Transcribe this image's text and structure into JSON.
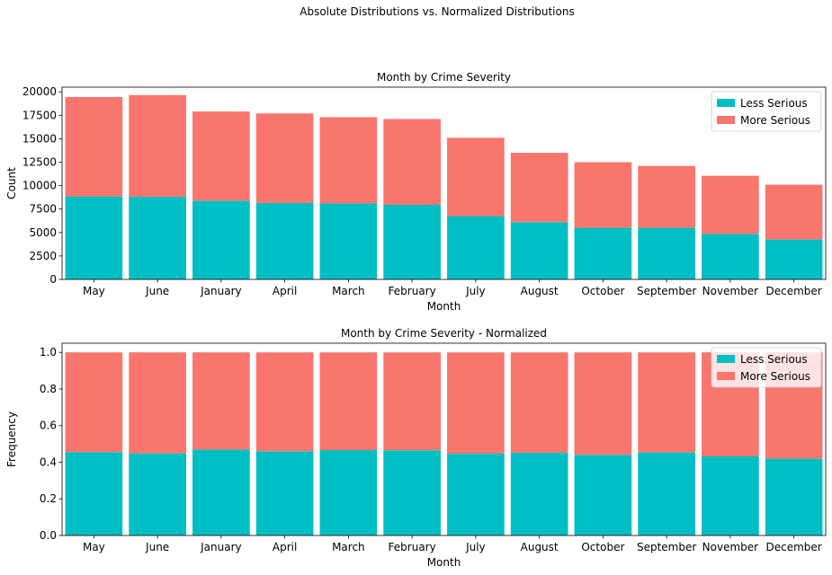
{
  "figure_title": "Absolute Distributions vs. Normalized Distributions",
  "colors": {
    "less_serious": "#00bfc4",
    "more_serious": "#f8766d"
  },
  "chart_data": [
    {
      "type": "bar",
      "stacked": true,
      "title": "Month by Crime Severity",
      "xlabel": "Month",
      "ylabel": "Count",
      "ylim": [
        0,
        20500
      ],
      "yticks": [
        0,
        2500,
        5000,
        7500,
        10000,
        12500,
        15000,
        17500,
        20000
      ],
      "categories": [
        "May",
        "June",
        "January",
        "April",
        "March",
        "February",
        "July",
        "August",
        "October",
        "September",
        "November",
        "December"
      ],
      "series": [
        {
          "name": "Less Serious",
          "values": [
            8850,
            8800,
            8400,
            8150,
            8100,
            7950,
            6750,
            6100,
            5500,
            5500,
            4850,
            4250
          ]
        },
        {
          "name": "More Serious",
          "values": [
            10600,
            10850,
            9500,
            9550,
            9200,
            9150,
            8350,
            7400,
            7000,
            6600,
            6200,
            5850
          ]
        }
      ],
      "legend": "top-right"
    },
    {
      "type": "bar",
      "stacked": true,
      "title": "Month by Crime Severity - Normalized",
      "xlabel": "Month",
      "ylabel": "Frequency",
      "ylim": [
        0,
        1.05
      ],
      "yticks": [
        0.0,
        0.2,
        0.4,
        0.6,
        0.8,
        1.0
      ],
      "categories": [
        "May",
        "June",
        "January",
        "April",
        "March",
        "February",
        "July",
        "August",
        "October",
        "September",
        "November",
        "December"
      ],
      "series": [
        {
          "name": "Less Serious",
          "values": [
            0.455,
            0.448,
            0.469,
            0.46,
            0.466,
            0.465,
            0.447,
            0.452,
            0.44,
            0.453,
            0.432,
            0.419
          ]
        },
        {
          "name": "More Serious",
          "values": [
            0.545,
            0.552,
            0.531,
            0.54,
            0.534,
            0.535,
            0.553,
            0.548,
            0.56,
            0.547,
            0.568,
            0.581
          ]
        }
      ],
      "legend": "top-right"
    }
  ]
}
